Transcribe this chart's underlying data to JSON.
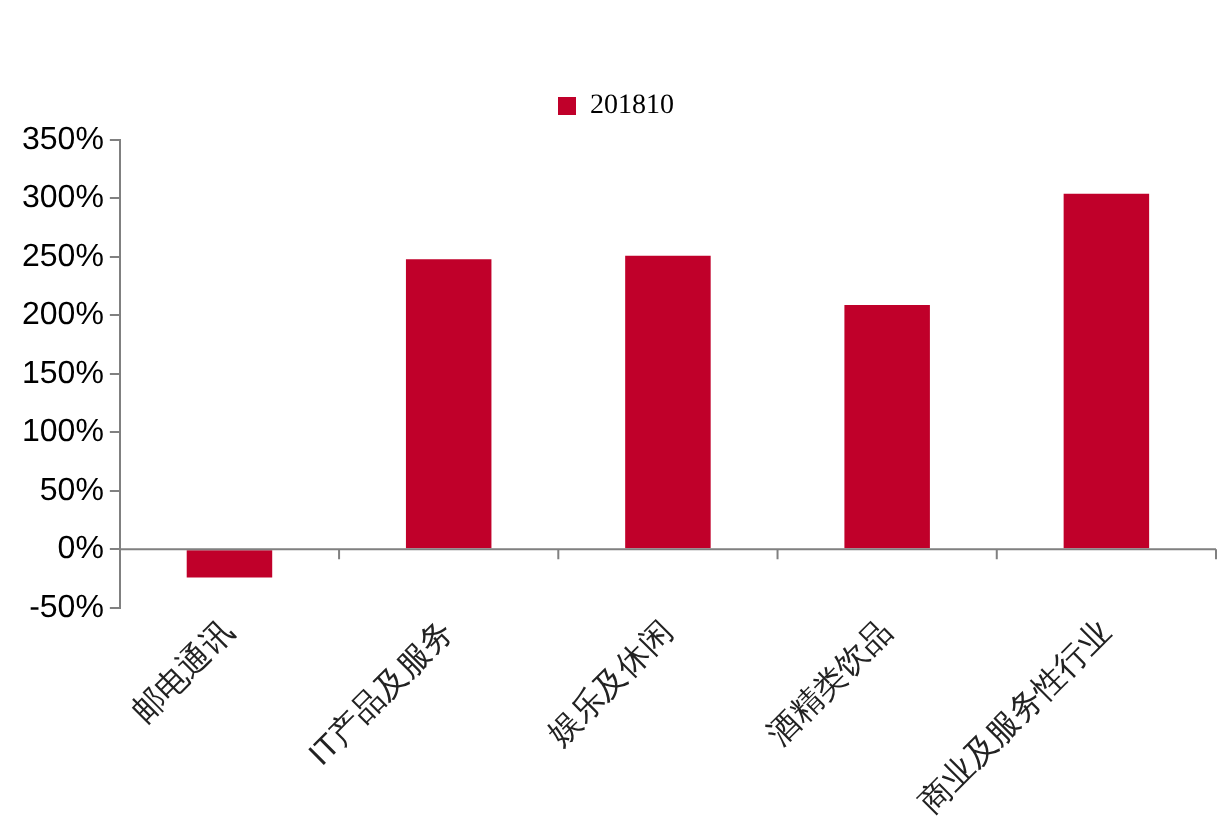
{
  "chart_data": {
    "type": "bar",
    "categories": [
      "邮电通讯",
      "IT产品及服务",
      "娱乐及休闲",
      "酒精类饮品",
      "商业及服务性行业"
    ],
    "series": [
      {
        "name": "201810",
        "color": "#c0002a",
        "values": [
          -24,
          248,
          251,
          209,
          304
        ]
      }
    ],
    "ylim": [
      -50,
      350
    ],
    "yticks": [
      {
        "value": -50,
        "label": "-50%"
      },
      {
        "value": 0,
        "label": "0%"
      },
      {
        "value": 50,
        "label": "50%"
      },
      {
        "value": 100,
        "label": "100%"
      },
      {
        "value": 150,
        "label": "150%"
      },
      {
        "value": 200,
        "label": "200%"
      },
      {
        "value": 250,
        "label": "250%"
      },
      {
        "value": 300,
        "label": "300%"
      },
      {
        "value": 350,
        "label": "350%"
      }
    ],
    "grid": false,
    "legend": "top"
  }
}
